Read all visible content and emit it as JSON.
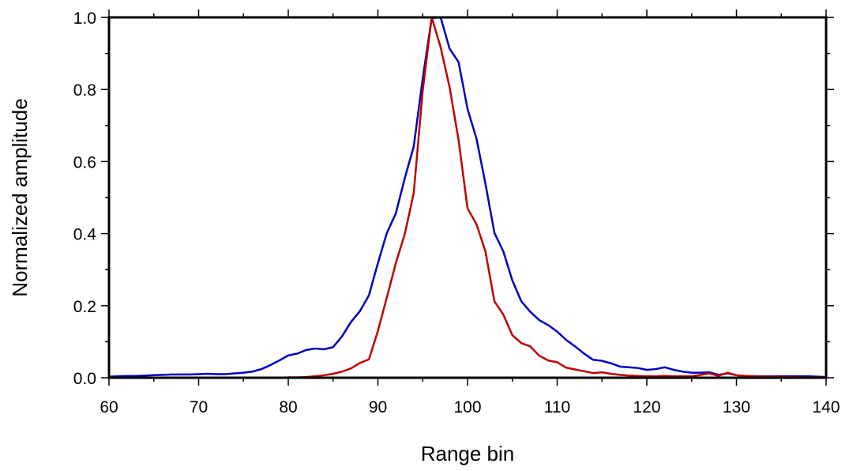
{
  "chart_data": {
    "type": "line",
    "title": "",
    "xlabel": "Range bin",
    "ylabel": "Normalized amplitude",
    "xlim": [
      60,
      140
    ],
    "ylim": [
      0,
      1.0
    ],
    "x_ticks": [
      60,
      70,
      80,
      90,
      100,
      110,
      120,
      130,
      140
    ],
    "x_tick_labels": [
      "60",
      "70",
      "80",
      "90",
      "100",
      "110",
      "120",
      "130",
      "140"
    ],
    "y_ticks": [
      0,
      0.2,
      0.4,
      0.6,
      0.8,
      1.0
    ],
    "y_tick_labels": [
      "0.0",
      "0.2",
      "0.4",
      "0.6",
      "0.8",
      "1.0"
    ],
    "grid": false,
    "legend": "none",
    "x": [
      60,
      61,
      62,
      63,
      64,
      65,
      66,
      67,
      68,
      69,
      70,
      71,
      72,
      73,
      74,
      75,
      76,
      77,
      78,
      79,
      80,
      81,
      82,
      83,
      84,
      85,
      86,
      87,
      88,
      89,
      90,
      91,
      92,
      93,
      94,
      95,
      96,
      97,
      98,
      99,
      100,
      101,
      102,
      103,
      104,
      105,
      106,
      107,
      108,
      109,
      110,
      111,
      112,
      113,
      114,
      115,
      116,
      117,
      118,
      119,
      120,
      121,
      122,
      123,
      124,
      125,
      126,
      127,
      128,
      129,
      130,
      131,
      132,
      133,
      134,
      135,
      136,
      137,
      138,
      139,
      140
    ],
    "series": [
      {
        "color": "#0000c0",
        "values": [
          0.003,
          0.004,
          0.005,
          0.005,
          0.006,
          0.007,
          0.008,
          0.009,
          0.009,
          0.009,
          0.01,
          0.011,
          0.01,
          0.01,
          0.012,
          0.014,
          0.017,
          0.024,
          0.035,
          0.048,
          0.062,
          0.067,
          0.077,
          0.081,
          0.079,
          0.085,
          0.115,
          0.155,
          0.185,
          0.229,
          0.318,
          0.402,
          0.456,
          0.554,
          0.642,
          0.83,
          0.998,
          1.0,
          0.913,
          0.876,
          0.746,
          0.663,
          0.538,
          0.402,
          0.35,
          0.27,
          0.212,
          0.183,
          0.16,
          0.146,
          0.128,
          0.105,
          0.087,
          0.067,
          0.05,
          0.047,
          0.04,
          0.031,
          0.029,
          0.027,
          0.022,
          0.024,
          0.029,
          0.022,
          0.017,
          0.014,
          0.014,
          0.015,
          0.008,
          0.012,
          0.007,
          0.005,
          0.004,
          0.004,
          0.004,
          0.004,
          0.004,
          0.004,
          0.004,
          0.003,
          0.002
        ]
      },
      {
        "color": "#c00000",
        "values": [
          0.0,
          0.0,
          0.0,
          0.0,
          0.0,
          0.0,
          0.0,
          0.0,
          0.0,
          0.0,
          0.0,
          0.0,
          0.0,
          0.0,
          0.0,
          0.0,
          0.0,
          0.0,
          0.0,
          0.0,
          0.001,
          0.001,
          0.002,
          0.004,
          0.007,
          0.011,
          0.017,
          0.026,
          0.041,
          0.051,
          0.13,
          0.223,
          0.318,
          0.399,
          0.513,
          0.797,
          1.0,
          0.917,
          0.806,
          0.66,
          0.47,
          0.426,
          0.35,
          0.212,
          0.175,
          0.118,
          0.096,
          0.087,
          0.061,
          0.048,
          0.043,
          0.028,
          0.023,
          0.018,
          0.013,
          0.015,
          0.011,
          0.008,
          0.006,
          0.005,
          0.004,
          0.004,
          0.005,
          0.004,
          0.004,
          0.004,
          0.008,
          0.012,
          0.005,
          0.014,
          0.007,
          0.005,
          0.004,
          0.003,
          0.003,
          0.002,
          0.002,
          0.001,
          0.001,
          0.001,
          0.001
        ]
      }
    ]
  }
}
